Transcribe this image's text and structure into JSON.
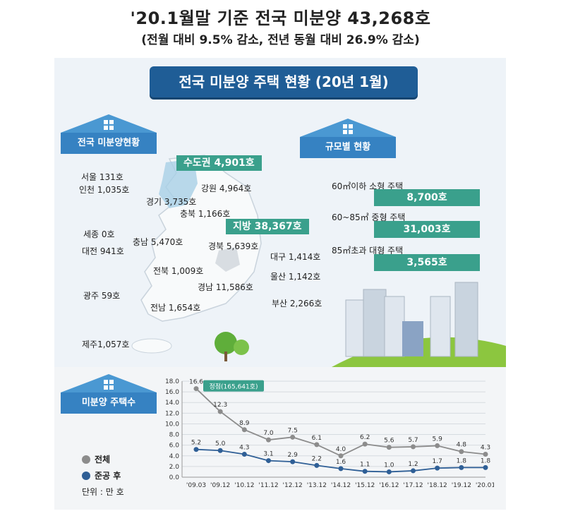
{
  "headline": {
    "title": "'20.1월말 기준 전국 미분양 43,268호",
    "subtitle": "(전월 대비 9.5% 감소, 전년 동월 대비 26.9% 감소)"
  },
  "banner": "전국 미분양 주택 현황 (20년 1월)",
  "sections": {
    "national": "전국 미분양현황",
    "by_size": "규모별 현황",
    "housing_count": "미분양 주택수"
  },
  "regions": {
    "capital_tag": "수도권 4,901호",
    "local_tag": "지방 38,367호",
    "seoul": "서울  131호",
    "incheon": "인천 1,035호",
    "gyeonggi": "경기 3,735호",
    "gangwon": "강원 4,964호",
    "chungbuk": "충북 1,166호",
    "sejong": "세종 0호",
    "chungnam": "충남 5,470호",
    "daejeon": "대전 941호",
    "gyeongbuk": "경북 5,639호",
    "daegu": "대구 1,414호",
    "jeonbuk": "전북 1,009호",
    "ulsan": "울산 1,142호",
    "gyeongnam": "경남 11,586호",
    "gwangju": "광주 59호",
    "busan": "부산 2,266호",
    "jeonnam": "전남 1,654호",
    "jeju": "제주1,057호"
  },
  "sizes": [
    {
      "label": "60㎡이하 소형 주택",
      "value": "8,700호"
    },
    {
      "label": "60~85㎡ 중형 주택",
      "value": "31,003호"
    },
    {
      "label": "85㎡초과 대형 주택",
      "value": "3,565호"
    }
  ],
  "legend": {
    "total": "전체",
    "completed": "준공 후",
    "unit": "단위 : 만 호"
  },
  "colors": {
    "total": "#8c8c8c",
    "completed": "#2f5f96",
    "accent": "#3aa08c",
    "banner": "#1f5d96"
  },
  "chart_data": {
    "type": "line",
    "categories": [
      "'09.03",
      "'09.12",
      "'10.12",
      "'11.12",
      "'12.12",
      "'13.12",
      "'14.12",
      "'15.12",
      "'16.12",
      "'17.12",
      "'18.12",
      "'19.12",
      "'20.01"
    ],
    "series": [
      {
        "name": "전체",
        "values": [
          16.6,
          12.3,
          8.9,
          7.0,
          7.5,
          6.1,
          4.0,
          6.2,
          5.6,
          5.7,
          5.9,
          4.8,
          4.3
        ],
        "labels": [
          "16.6",
          "12.3",
          "8.9",
          "7.0",
          "7.5",
          "6.1",
          "4.0",
          "6.2",
          "5.6",
          "5.7",
          "5.9",
          "4.8",
          "4.3"
        ]
      },
      {
        "name": "준공 후",
        "values": [
          5.2,
          5.0,
          4.3,
          3.1,
          2.9,
          2.2,
          1.6,
          1.1,
          1.0,
          1.2,
          1.7,
          1.8,
          1.8
        ],
        "labels": [
          "5.2",
          "5.0",
          "4.3",
          "3.1",
          "2.9",
          "2.2",
          "1.6",
          "1.1",
          "1.0",
          "1.2",
          "1.7",
          "1.8",
          "1.8"
        ]
      }
    ],
    "yticks": [
      "0.0",
      "2.0",
      "4.0",
      "6.0",
      "8.0",
      "10.0",
      "12.0",
      "14.0",
      "16.0",
      "18.0"
    ],
    "ylim": [
      0,
      18
    ],
    "grid": true,
    "annotation": "정점(165,641호)"
  }
}
